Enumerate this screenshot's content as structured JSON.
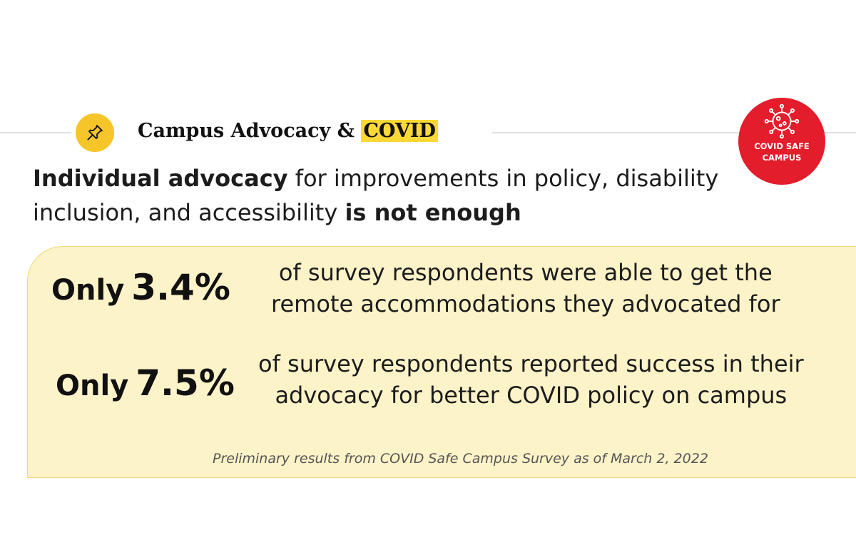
{
  "header": {
    "title_prefix": "Campus Advocacy &",
    "title_highlight": "COVID",
    "pin_icon": "pushpin-icon"
  },
  "badge": {
    "icon": "virus-icon",
    "line1": "COVID SAFE",
    "line2": "CAMPUS"
  },
  "headline": {
    "part1_bold": "Individual advocacy",
    "part2": " for improvements in policy, disability inclusion, and accessibility ",
    "part3_bold": "is not enough"
  },
  "stats": [
    {
      "only": "Only",
      "value": "3.4%",
      "line1": "of survey respondents were able to get the",
      "line2": "remote accommodations they advocated for"
    },
    {
      "only": "Only",
      "value": "7.5%",
      "line1": "of survey respondents reported success in their",
      "line2": "advocacy for better COVID policy on campus"
    }
  ],
  "footnote": "Preliminary results from COVID Safe Campus Survey as of March 2, 2022",
  "colors": {
    "accent_yellow": "#f6c52a",
    "highlight_yellow": "#fdd938",
    "badge_red": "#e31d2b",
    "card_bg": "#fdf3c9"
  }
}
